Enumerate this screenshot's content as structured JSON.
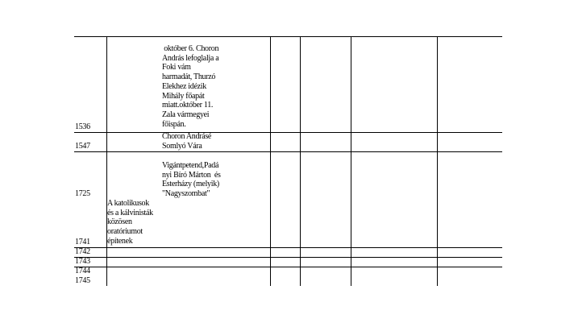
{
  "rows": [
    {
      "year": "1536",
      "col2": "",
      "col3": [
        " október 6. Choron",
        "András lefoglalja a",
        "Foki vám",
        "harmadát, Thurzó",
        "Elekhez idézik",
        "Mihály főapát",
        "miatt.október 11.",
        "Zala vármegyei",
        "főispán."
      ]
    },
    {
      "year": "1547",
      "col2": "",
      "col3": [
        "Choron Andrásé",
        "Somlyó Vára"
      ]
    },
    {
      "year": "1725",
      "col2": "",
      "col3": [
        "Vigántpetend,Padá",
        "nyi Bíró Márton  és",
        "Esterházy (melyik)",
        "\"Nagyszombat\""
      ]
    },
    {
      "year": "1741",
      "col2": [
        "A katolikusok",
        "és a kálvinisták",
        "közösen",
        "oratóriumot",
        "építenek"
      ],
      "col3": []
    },
    {
      "year": "1742"
    },
    {
      "year": "1743"
    },
    {
      "year": "1744"
    },
    {
      "year": "1745"
    }
  ]
}
